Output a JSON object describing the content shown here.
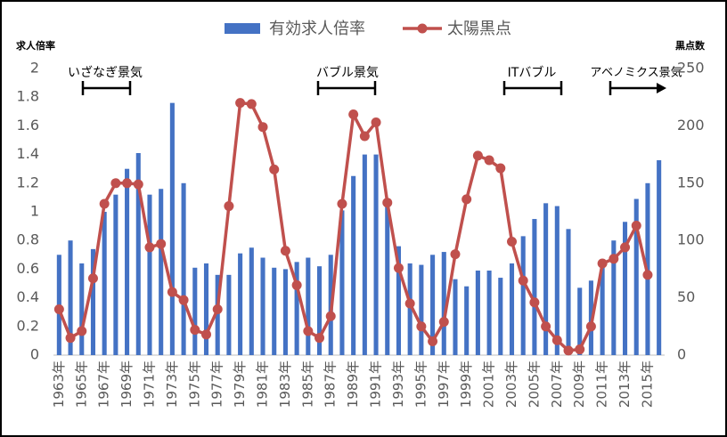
{
  "chart_data": {
    "type": "bar_line",
    "legend_position": "top",
    "y_axis_label": "求人倍率",
    "y2_axis_label": "黒点数",
    "annotations": [
      "いざなぎ景気",
      "バブル景気",
      "ITバブル",
      "アベノミクス景気"
    ],
    "categories": [
      "1963年",
      null,
      "1965年",
      null,
      "1967年",
      null,
      "1969年",
      null,
      "1971年",
      null,
      "1973年",
      null,
      "1975年",
      null,
      "1977年",
      null,
      "1979年",
      null,
      "1981年",
      null,
      "1983年",
      null,
      "1985年",
      null,
      "1987年",
      null,
      "1989年",
      null,
      "1991年",
      null,
      "1993年",
      null,
      "1995年",
      null,
      "1997年",
      null,
      "1999年",
      null,
      "2001年",
      null,
      "2003年",
      null,
      "2005年",
      null,
      "2007年",
      null,
      "2009年",
      null,
      "2011年",
      null,
      "2013年",
      null,
      "2015年",
      null
    ],
    "series": [
      {
        "name": "有効求人倍率",
        "color": "#4472c4",
        "type": "bar",
        "values": [
          0.7,
          0.8,
          0.64,
          0.74,
          1.0,
          1.12,
          1.3,
          1.41,
          1.12,
          1.16,
          1.76,
          1.2,
          0.61,
          0.64,
          0.56,
          0.56,
          0.71,
          0.75,
          0.68,
          0.61,
          0.6,
          0.65,
          0.68,
          0.62,
          0.7,
          1.01,
          1.25,
          1.4,
          1.4,
          1.08,
          0.76,
          0.64,
          0.63,
          0.7,
          0.72,
          0.53,
          0.48,
          0.59,
          0.59,
          0.54,
          0.64,
          0.83,
          0.95,
          1.06,
          1.04,
          0.88,
          0.47,
          0.52,
          0.65,
          0.8,
          0.93,
          1.09,
          1.2,
          1.36
        ]
      },
      {
        "name": "太陽黒点",
        "color": "#c0504d",
        "type": "line",
        "axis": "y2",
        "values": [
          40,
          15,
          21,
          67,
          132,
          150,
          150,
          149,
          94,
          97,
          55,
          48,
          22,
          18,
          40,
          130,
          220,
          219,
          199,
          162,
          91,
          61,
          21,
          15,
          34,
          132,
          210,
          191,
          203,
          133,
          76,
          45,
          25,
          12,
          29,
          88,
          136,
          174,
          170,
          163,
          99,
          65,
          46,
          25,
          13,
          4,
          5,
          25,
          80,
          84,
          94,
          113,
          70,
          null
        ]
      }
    ],
    "ylim": [
      0,
      2
    ],
    "yticks": [
      0,
      0.2,
      0.4,
      0.6,
      0.8,
      1,
      1.2,
      1.4,
      1.6,
      1.8,
      2
    ],
    "y2lim": [
      0,
      250
    ],
    "y2ticks": [
      0,
      50,
      100,
      150,
      200,
      250
    ]
  }
}
